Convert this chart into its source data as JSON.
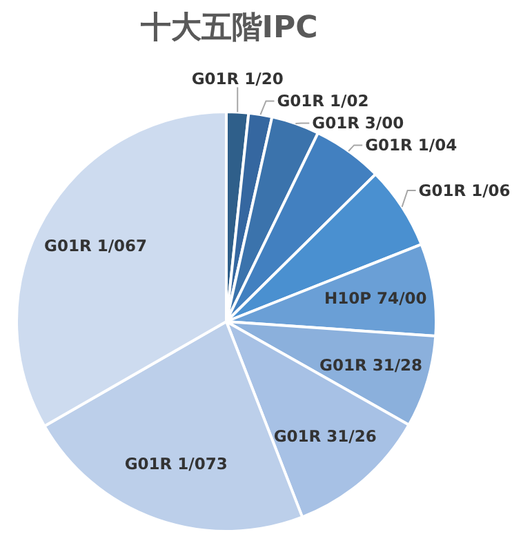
{
  "chart_data": {
    "type": "pie",
    "title": "十大五階IPC",
    "categories": [
      "G01R 1/20",
      "G01R 1/02",
      "G01R 3/00",
      "G01R 1/04",
      "G01R 1/06",
      "H10P 74/00",
      "G01R 31/28",
      "G01R 31/26",
      "G01R 1/073",
      "G01R 1/067"
    ],
    "values": [
      1.7,
      1.8,
      3.7,
      5.4,
      6.4,
      7.1,
      7.1,
      10.9,
      22.6,
      33.3
    ],
    "colors": [
      "#2f5f8a",
      "#3567a0",
      "#3b73ac",
      "#4280c0",
      "#4a90d0",
      "#6a9fd6",
      "#8bb0dc",
      "#a7c1e5",
      "#bccfea",
      "#cddbef"
    ],
    "legend": false
  }
}
